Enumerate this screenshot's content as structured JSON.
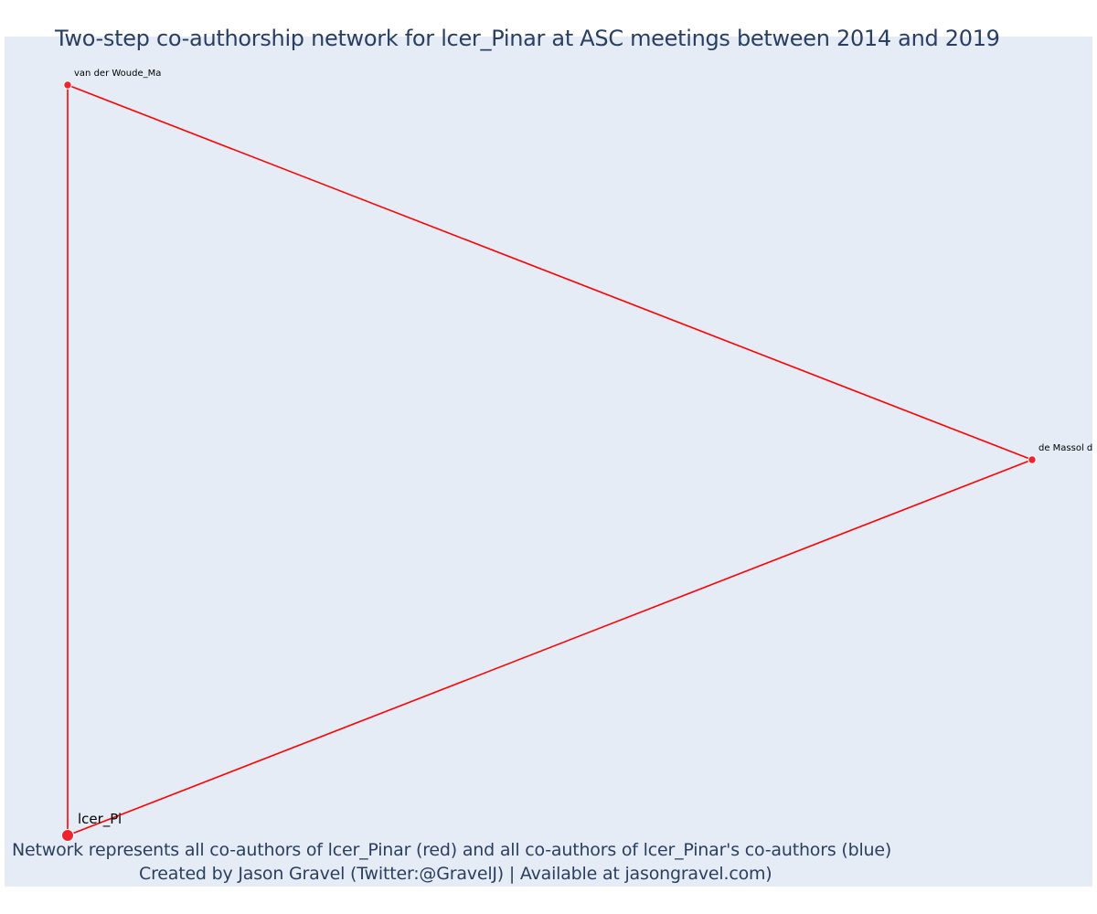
{
  "title": "Two-step co-authorship network for lcer_Pinar at ASC meetings between 2014 and 2019",
  "caption": {
    "line1": "Network represents all co-authors of lcer_Pinar (red) and all co-authors of lcer_Pinar's co-authors (blue)",
    "line2": "Created by Jason Gravel (Twitter:@GravelJ) | Available at jasongravel.com)"
  },
  "colors": {
    "plot_background": "#e5ecf6",
    "edge": "#ff0000",
    "node_red": "#f0242c",
    "text": "#2a3f5f"
  },
  "nodes": [
    {
      "id": "lcer_Pinar",
      "label": "lcer_Pi",
      "group": "red",
      "role": "focal"
    },
    {
      "id": "van der Woude_Ma",
      "label": "van der Woude_Ma",
      "group": "red",
      "role": "co-author"
    },
    {
      "id": "de Massol de",
      "label": "de Massol de",
      "group": "red",
      "role": "co-author"
    }
  ],
  "edges": [
    {
      "source": "lcer_Pinar",
      "target": "van der Woude_Ma"
    },
    {
      "source": "van der Woude_Ma",
      "target": "de Massol de"
    },
    {
      "source": "de Massol de",
      "target": "lcer_Pinar"
    }
  ]
}
